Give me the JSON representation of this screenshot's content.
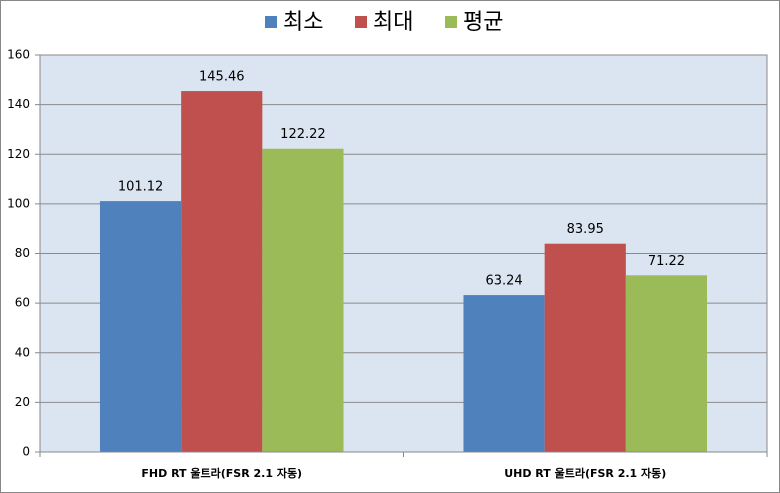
{
  "chart_data": {
    "type": "bar",
    "categories": [
      "FHD RT 울트라(FSR 2.1 자동)",
      "UHD RT 울트라(FSR 2.1 자동)"
    ],
    "series": [
      {
        "name": "최소",
        "color": "#4f81bd",
        "values": [
          101.12,
          63.24
        ]
      },
      {
        "name": "최대",
        "color": "#c0504d",
        "values": [
          145.46,
          83.95
        ]
      },
      {
        "name": "평균",
        "color": "#9bbb59",
        "values": [
          122.22,
          71.22
        ]
      }
    ],
    "ylim": [
      0,
      160
    ],
    "yticks": [
      0,
      20,
      40,
      60,
      80,
      100,
      120,
      140,
      160
    ],
    "grid": true,
    "legend": "top"
  }
}
